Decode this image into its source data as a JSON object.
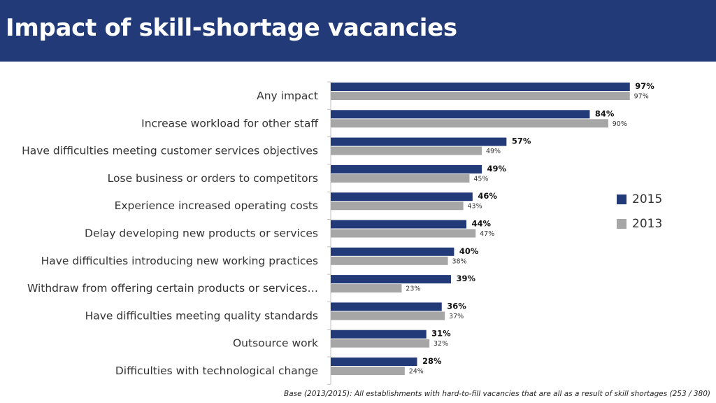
{
  "header": {
    "title": "Impact of skill-shortage vacancies"
  },
  "footnote": "Base (2013/2015): All establishments with hard-to-fill vacancies that are all as a result of skill shortages  (253 / 380)",
  "colors": {
    "header_bg": "#223a78",
    "series_2015": "#223a78",
    "series_2013": "#a6a6a6"
  },
  "chart_data": {
    "type": "bar",
    "orientation": "horizontal",
    "categories": [
      "Any impact",
      "Increase workload for other staff",
      "Have difficulties meeting customer services objectives",
      "Lose business or orders to competitors",
      "Experience increased operating costs",
      "Delay developing new products or services",
      "Have difficulties introducing new working practices",
      "Withdraw from offering certain products or services…",
      "Have difficulties meeting quality standards",
      "Outsource work",
      "Difficulties with technological change"
    ],
    "series": [
      {
        "name": "2015",
        "values": [
          97,
          84,
          57,
          49,
          46,
          44,
          40,
          39,
          36,
          31,
          28
        ]
      },
      {
        "name": "2013",
        "values": [
          97,
          90,
          49,
          45,
          43,
          47,
          38,
          23,
          37,
          32,
          24
        ]
      }
    ],
    "value_suffix": "%",
    "xlim": [
      0,
      100
    ],
    "grid": false,
    "legend_position": "right"
  }
}
